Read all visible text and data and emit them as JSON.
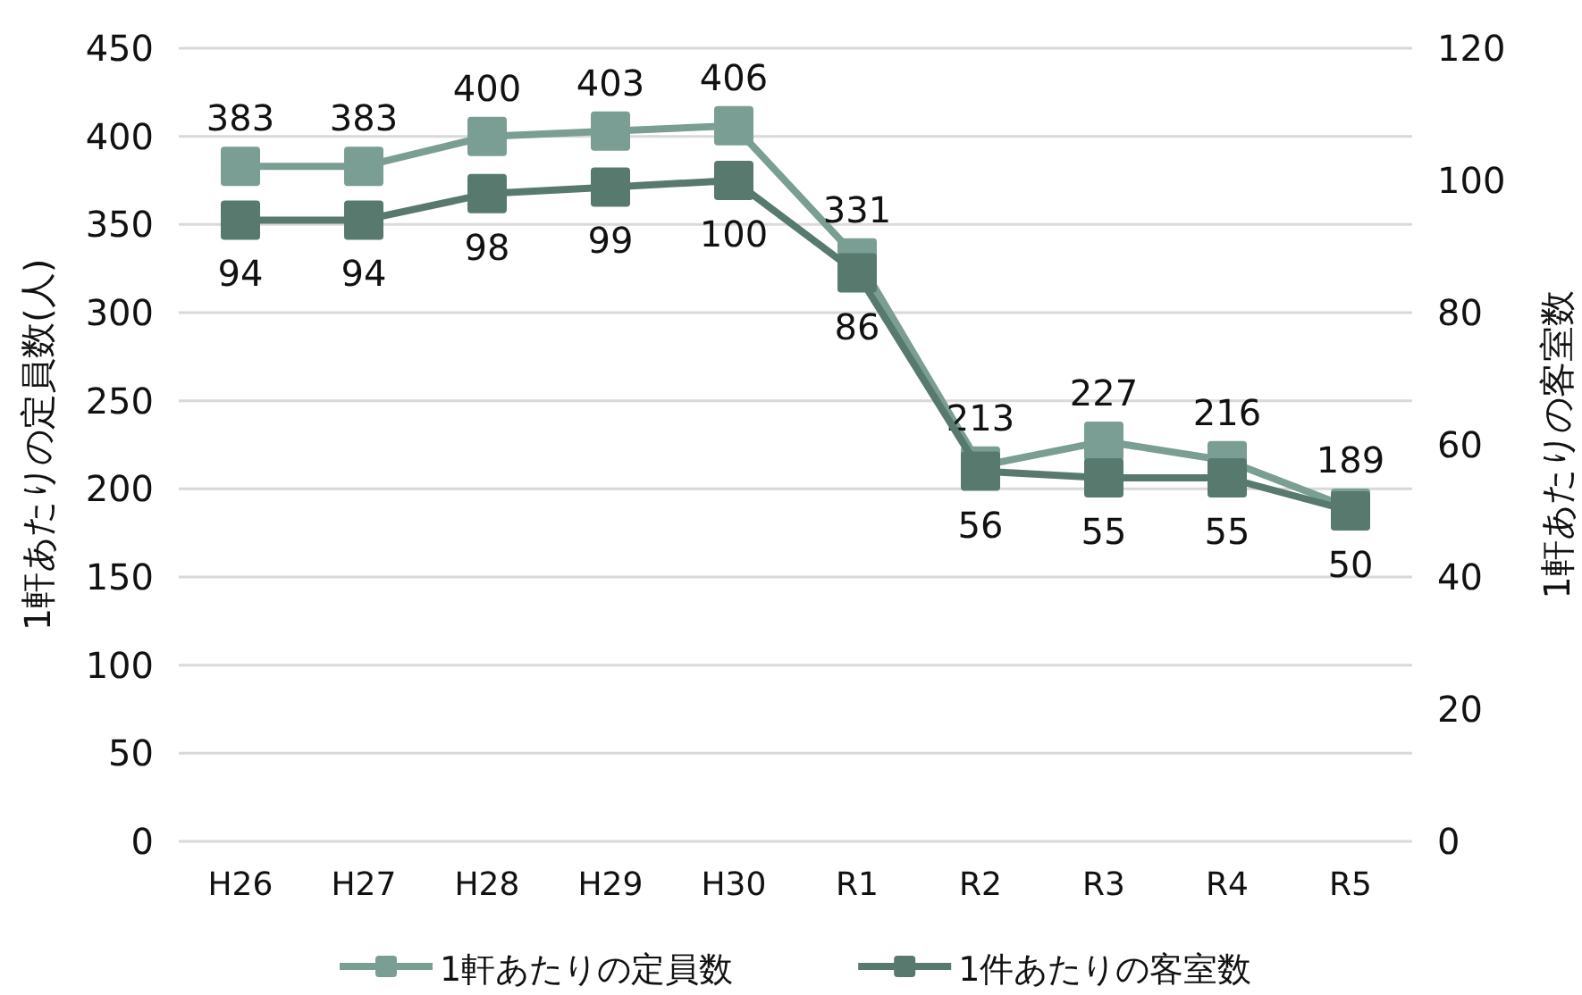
{
  "chart_data": {
    "type": "line",
    "categories": [
      "H26",
      "H27",
      "H28",
      "H29",
      "H30",
      "R1",
      "R2",
      "R3",
      "R4",
      "R5"
    ],
    "series": [
      {
        "name": "1軒あたりの定員数",
        "color": "#7a9e93",
        "values": [
          383,
          383,
          400,
          403,
          406,
          331,
          213,
          227,
          216,
          189
        ]
      },
      {
        "name": "1件あたりの客室数",
        "color": "#587a6e",
        "axis": "y2",
        "values": [
          94,
          94,
          98,
          99,
          100,
          86,
          56,
          55,
          55,
          50
        ]
      }
    ],
    "ylabel": "1軒あたりの定員数(人)",
    "y2label": "1軒あたりの客室数",
    "ylim": [
      0,
      450
    ],
    "yticks": [
      0,
      50,
      100,
      150,
      200,
      250,
      300,
      350,
      400,
      450
    ],
    "y2lim": [
      0,
      120
    ],
    "y2ticks": [
      0,
      20,
      40,
      60,
      80,
      100,
      120
    ],
    "grid": "y",
    "legend": "bottom",
    "marker": "square",
    "line_style": "solid",
    "data_labels": true
  }
}
